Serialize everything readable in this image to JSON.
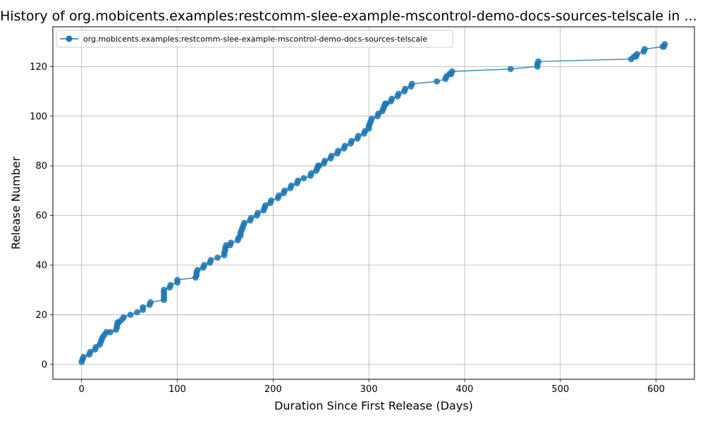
{
  "chart_data": {
    "type": "line",
    "title": "History of org.mobicents.examples:restcomm-slee-example-mscontrol-demo-docs-sources-telscale in ...",
    "xlabel": "Duration Since First Release (Days)",
    "ylabel": "Release Number",
    "xlim": [
      -30,
      640
    ],
    "ylim": [
      -6,
      136
    ],
    "x_ticks": [
      0,
      100,
      200,
      300,
      400,
      500,
      600
    ],
    "y_ticks": [
      0,
      20,
      40,
      60,
      80,
      100,
      120
    ],
    "grid": true,
    "legend_position": "top-left",
    "color": "#1f77b4",
    "series": [
      {
        "name": "org.mobicents.examples:restcomm-slee-example-mscontrol-demo-docs-sources-telscale",
        "x": [
          0,
          1,
          2,
          8,
          9,
          14,
          15,
          19,
          20,
          21,
          22,
          24,
          26,
          30,
          36,
          37,
          37,
          38,
          39,
          42,
          44,
          51,
          58,
          64,
          64,
          71,
          72,
          86,
          86,
          86,
          86,
          86,
          92,
          93,
          100,
          100,
          119,
          120,
          120,
          121,
          127,
          128,
          134,
          135,
          142,
          149,
          149,
          150,
          150,
          151,
          155,
          156,
          163,
          164,
          166,
          166,
          167,
          168,
          169,
          170,
          176,
          177,
          183,
          184,
          190,
          191,
          192,
          197,
          198,
          205,
          206,
          211,
          212,
          218,
          219,
          225,
          226,
          232,
          239,
          240,
          245,
          246,
          247,
          248,
          253,
          254,
          260,
          261,
          267,
          268,
          274,
          275,
          281,
          282,
          288,
          289,
          295,
          296,
          300,
          300,
          301,
          302,
          303,
          309,
          310,
          314,
          315,
          316,
          317,
          318,
          323,
          324,
          330,
          331,
          337,
          338,
          344,
          345,
          371,
          380,
          381,
          384,
          386,
          387,
          448,
          476,
          476,
          477,
          574,
          577,
          579,
          580,
          587,
          588,
          607,
          608,
          609
        ],
        "y": [
          1,
          2,
          3,
          4,
          5,
          6,
          7,
          8,
          9,
          10,
          11,
          12,
          13,
          13,
          14,
          15,
          16,
          17,
          17,
          18,
          19,
          20,
          21,
          22,
          23,
          24,
          25,
          26,
          27,
          28,
          29,
          30,
          31,
          32,
          33,
          34,
          35,
          36,
          37,
          38,
          39,
          40,
          41,
          42,
          43,
          44,
          45,
          46,
          47,
          48,
          48,
          49,
          50,
          51,
          52,
          53,
          54,
          55,
          56,
          57,
          58,
          59,
          60,
          61,
          62,
          63,
          64,
          65,
          66,
          67,
          68,
          69,
          70,
          71,
          72,
          73,
          74,
          75,
          76,
          77,
          78,
          79,
          80,
          80,
          81,
          82,
          83,
          84,
          85,
          86,
          87,
          88,
          89,
          90,
          91,
          92,
          93,
          94,
          95,
          96,
          97,
          98,
          99,
          100,
          101,
          102,
          103,
          104,
          105,
          105,
          106,
          107,
          108,
          109,
          110,
          111,
          112,
          113,
          114,
          115,
          116,
          117,
          117,
          118,
          119,
          120,
          121,
          122,
          123,
          124,
          124,
          125,
          126,
          127,
          128,
          128,
          129
        ]
      }
    ]
  }
}
